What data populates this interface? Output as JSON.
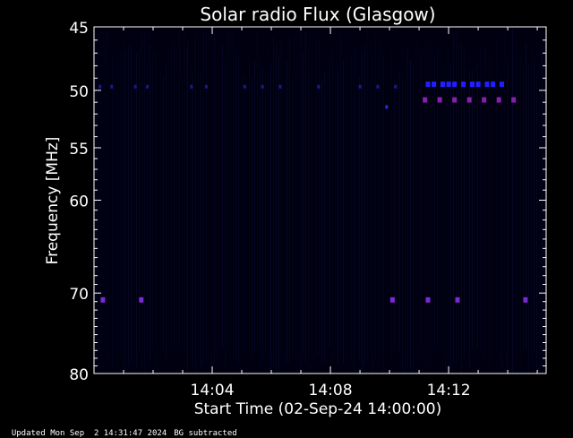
{
  "chart_data": {
    "type": "heatmap",
    "title": "Solar radio Flux (Glasgow)",
    "xlabel": "Start Time (02-Sep-24 14:00:00)",
    "ylabel": "Frequency [MHz]",
    "x_range_min": [
      0,
      15.3
    ],
    "x_ticks": [
      {
        "value": 4,
        "label": "14:04"
      },
      {
        "value": 8,
        "label": "14:08"
      },
      {
        "value": 12,
        "label": "14:12"
      }
    ],
    "y_range_mhz": [
      45,
      80
    ],
    "y_ticks": [
      45,
      50,
      55,
      60,
      70,
      80
    ],
    "y_scale": "log",
    "background_color": "#000010",
    "frame_color": "#ffffff",
    "emissions": [
      {
        "freq": 49.7,
        "times": [
          0.2,
          0.6,
          1.4,
          1.8,
          3.3,
          3.8,
          5.1,
          5.7,
          6.3,
          7.6,
          9.0,
          9.6,
          10.2
        ],
        "color": "#1a1a8a",
        "kind": "faint"
      },
      {
        "freq": 51.4,
        "times": [
          9.9
        ],
        "color": "#2a2ae0",
        "kind": "faint"
      },
      {
        "freq": 49.5,
        "times": [
          11.3,
          11.5,
          11.8,
          12.0,
          12.2,
          12.5,
          12.8,
          13.0,
          13.3,
          13.5,
          13.8
        ],
        "color": "#2020ff",
        "kind": "strong"
      },
      {
        "freq": 50.8,
        "times": [
          11.2,
          11.7,
          12.2,
          12.7,
          13.2,
          13.7,
          14.2
        ],
        "color": "#8a1eb0",
        "kind": "strong"
      },
      {
        "freq": 70.8,
        "times": [
          0.3,
          1.6,
          10.1,
          11.3,
          12.3,
          14.6
        ],
        "color": "#7a2ad0",
        "kind": "strong"
      }
    ]
  },
  "footer": {
    "updated": "Updated Mon Sep  2 14:31:47 2024",
    "note": "BG subtracted"
  }
}
